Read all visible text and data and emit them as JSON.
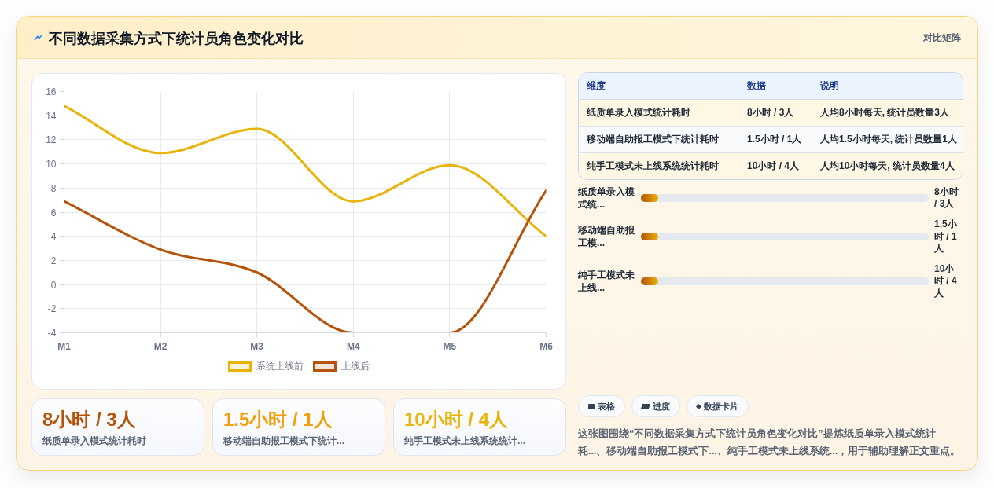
{
  "chart_data": [
    {
      "type": "line",
      "title": "不同数据采集方式下统计员角色变化对比",
      "annotations": [
        "对比矩阵"
      ],
      "categories": [
        "M1",
        "M2",
        "M3",
        "M4",
        "M5",
        "M6"
      ],
      "series": [
        {
          "name": "系统上线前",
          "color": "#eab308",
          "values": [
            14.8,
            10.9,
            12.9,
            6.9,
            9.9,
            4.0
          ]
        },
        {
          "name": "上线后",
          "color": "#b45309",
          "values": [
            6.9,
            2.9,
            1.0,
            -4,
            -4,
            7.8
          ]
        }
      ],
      "ylim": [
        -4,
        16
      ],
      "yticks": [
        -4,
        -2,
        0,
        2,
        4,
        6,
        8,
        10,
        12,
        14,
        16
      ],
      "grid": true,
      "legend": "bottom",
      "marker": "none",
      "line_style": "solid"
    },
    {
      "type": "other",
      "categories": [
        "维度",
        "数据",
        "说明"
      ],
      "cell_labels": [
        [
          "纸质单录入模式统计耗时",
          "8小时 / 3人",
          "人均8小时每天, 统计员数量3人"
        ],
        [
          "移动端自助报工模式下统计耗时",
          "1.5小时 / 1人",
          "人均1.5小时每天, 统计员数量1人"
        ],
        [
          "纯手工模式未上线系统统计耗时",
          "10小时 / 4人",
          "人均10小时每天, 统计员数量4人"
        ]
      ]
    },
    {
      "type": "other",
      "categories": [
        "纸质单录入模式统...",
        "移动端自助报工模...",
        "纯手工模式未上线..."
      ],
      "value_labels": [
        "8小时 / 3人",
        "1.5小时 / 1人",
        "10小时 / 4人"
      ]
    },
    {
      "type": "other",
      "categories": [
        "纸质单录入模式统计耗时",
        "移动端自助报工模式下统计...",
        "纯手工模式未上线系统统计..."
      ],
      "value_labels": [
        "8小时 / 3人",
        "1.5小时 / 1人",
        "10小时 / 4人"
      ]
    },
    {
      "type": "other",
      "categories": [
        "表格",
        "进度",
        "数据卡片"
      ],
      "annotations": [
        "这张图围绕“不同数据采集方式下统计员角色变化对比”提炼纸质单录入模式统计耗...、移动端自助报工模式下...、纯手工模式未上线系统...，用于辅助理解正文重点。"
      ]
    }
  ]
}
